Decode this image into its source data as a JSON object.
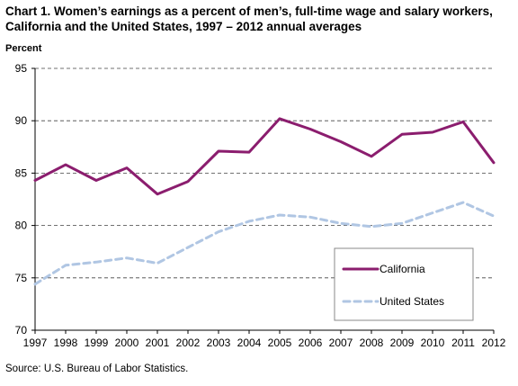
{
  "chart_title": "Chart 1. Women’s earnings as a percent of men’s, full-time wage and salary workers,\nCalifornia and the United States, 1997 – 2012 annual averages",
  "source": "Source:  U.S.  Bureau of Labor Statistics.",
  "chart_data": {
    "type": "line",
    "title": "Chart 1. Women’s earnings as a percent of men’s, full-time wage and salary workers, California and the United States, 1997 – 2012 annual averages",
    "ylabel": "Percent",
    "xlabel": "",
    "ylim": [
      70,
      95
    ],
    "yticks": [
      70,
      75,
      80,
      85,
      90,
      95
    ],
    "grid": "horizontal-dashed",
    "legend_position": "lower-right",
    "x": [
      "1997",
      "1998",
      "1999",
      "2000",
      "2001",
      "2002",
      "2003",
      "2004",
      "2005",
      "2006",
      "2007",
      "2008",
      "2009",
      "2010",
      "2011",
      "2012"
    ],
    "series": [
      {
        "name": "California",
        "color": "#8b1d6e",
        "style": "solid",
        "values": [
          84.3,
          85.8,
          84.3,
          85.5,
          83.0,
          84.2,
          87.1,
          87.0,
          90.2,
          89.2,
          88.0,
          86.6,
          88.7,
          88.9,
          89.9,
          86.0
        ]
      },
      {
        "name": "United States",
        "color": "#b0c6e3",
        "style": "dashed",
        "values": [
          74.4,
          76.2,
          76.5,
          76.9,
          76.4,
          77.9,
          79.4,
          80.4,
          81.0,
          80.8,
          80.2,
          79.9,
          80.2,
          81.2,
          82.2,
          80.9
        ]
      }
    ]
  }
}
